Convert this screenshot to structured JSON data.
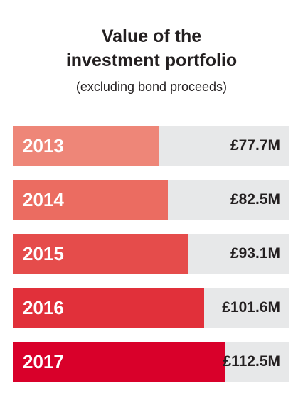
{
  "chart_data": {
    "type": "bar",
    "orientation": "horizontal",
    "title_lines": [
      "Value of the",
      "investment portfolio"
    ],
    "subtitle": "(excluding bond proceeds)",
    "xlabel": "",
    "ylabel": "",
    "categories": [
      "2013",
      "2014",
      "2015",
      "2016",
      "2017"
    ],
    "values": [
      77.7,
      82.5,
      93.1,
      101.6,
      112.5
    ],
    "value_labels": [
      "£77.7M",
      "£82.5M",
      "£93.1M",
      "£101.6M",
      "£112.5M"
    ],
    "unit": "£M",
    "xlim": [
      0,
      146.7
    ],
    "grid": false,
    "legend": "none",
    "colors": [
      "#ee8678",
      "#eb6c61",
      "#e54c4b",
      "#e1303a",
      "#d9002a"
    ],
    "track_color": "#e7e8e9"
  }
}
